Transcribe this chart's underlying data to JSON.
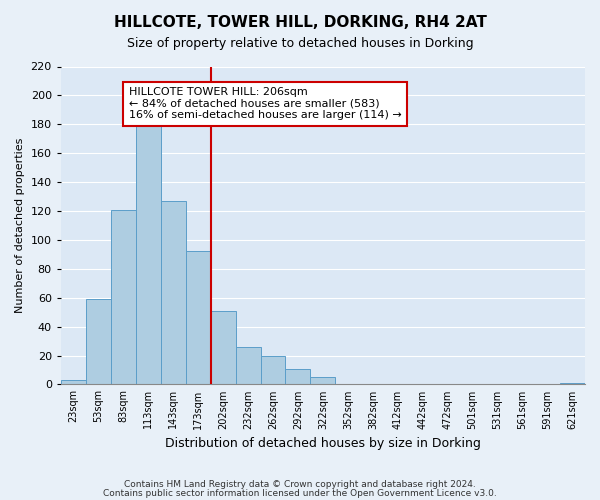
{
  "title": "HILLCOTE, TOWER HILL, DORKING, RH4 2AT",
  "subtitle": "Size of property relative to detached houses in Dorking",
  "xlabel": "Distribution of detached houses by size in Dorking",
  "ylabel": "Number of detached properties",
  "bar_values": [
    3,
    59,
    121,
    180,
    127,
    92,
    51,
    26,
    20,
    11,
    5,
    0,
    0,
    0,
    0,
    0,
    0,
    0,
    0,
    0,
    1
  ],
  "bar_labels": [
    "23sqm",
    "53sqm",
    "83sqm",
    "113sqm",
    "143sqm",
    "173sqm",
    "202sqm",
    "232sqm",
    "262sqm",
    "292sqm",
    "322sqm",
    "352sqm",
    "382sqm",
    "412sqm",
    "442sqm",
    "472sqm",
    "501sqm",
    "531sqm",
    "561sqm",
    "591sqm",
    "621sqm"
  ],
  "bar_color": "#aecde1",
  "bar_edge_color": "#5b9ec9",
  "vline_index": 6,
  "vline_color": "#cc0000",
  "annotation_box_text": "HILLCOTE TOWER HILL: 206sqm\n← 84% of detached houses are smaller (583)\n16% of semi-detached houses are larger (114) →",
  "annotation_box_color": "#cc0000",
  "annotation_box_bg": "#ffffff",
  "ylim": [
    0,
    220
  ],
  "yticks": [
    0,
    20,
    40,
    60,
    80,
    100,
    120,
    140,
    160,
    180,
    200,
    220
  ],
  "footer_line1": "Contains HM Land Registry data © Crown copyright and database right 2024.",
  "footer_line2": "Contains public sector information licensed under the Open Government Licence v3.0.",
  "background_color": "#e8f0f8",
  "plot_bg_color": "#dce8f5"
}
